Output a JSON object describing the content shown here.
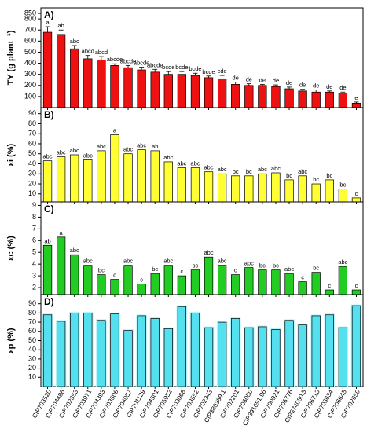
{
  "chart_data": [
    {
      "type": "bar",
      "title": "A)",
      "y_label": "TY (g plant⁻¹)",
      "color": "#ee1111",
      "categories": [
        "CIP703520",
        "CIP704486",
        "CIP702853",
        "CIP703971",
        "CIP704393",
        "CIP703506",
        "CIP704057",
        "CIP701129",
        "CIP704501",
        "CIP705952",
        "CIP703068",
        "CIP703552",
        "CIP702343",
        "CIP380389.1",
        "CIP702201",
        "CIP706050",
        "CIP391691.96",
        "CIP700921",
        "CIP706776",
        "CIP374080.5",
        "CIP706713",
        "CIP703634",
        "CIP706645",
        "CIP702650"
      ],
      "values": [
        680,
        660,
        530,
        440,
        430,
        380,
        360,
        340,
        320,
        300,
        300,
        290,
        270,
        260,
        210,
        200,
        200,
        190,
        170,
        150,
        140,
        140,
        130,
        40
      ],
      "errors": [
        50,
        40,
        30,
        30,
        30,
        15,
        20,
        25,
        25,
        25,
        25,
        20,
        15,
        30,
        20,
        15,
        10,
        15,
        15,
        15,
        20,
        10,
        10,
        10
      ],
      "annotations": [
        "a",
        "ab",
        "abc",
        "abcd",
        "abcd",
        "abcde",
        "abcde",
        "abcde",
        "abcde",
        "bcde",
        "bcde",
        "bcde",
        "bcde",
        "cde",
        "de",
        "de",
        "de",
        "de",
        "de",
        "de",
        "de",
        "de",
        "de",
        "e"
      ],
      "ylim": [
        0,
        900
      ],
      "yticks": [
        100,
        200,
        300,
        400,
        500,
        600,
        700,
        800,
        850
      ]
    },
    {
      "type": "bar",
      "title": "B)",
      "y_label": "εi (%)",
      "color": "#ffff33",
      "values": [
        43,
        47,
        49,
        44,
        53,
        69,
        50,
        54,
        53,
        42,
        36,
        36,
        32,
        30,
        28,
        28,
        30,
        31,
        24,
        28,
        20,
        24,
        15,
        6
      ],
      "annotations": [
        "abc",
        "abc",
        "abc",
        "abc",
        "abc",
        "a",
        "abc",
        "abc",
        "ab",
        "abc",
        "abc",
        "abc",
        "abc",
        "abc",
        "bc",
        "bc",
        "abc",
        "abc",
        "bc",
        "abc",
        "bc",
        "bc",
        "bc",
        "c"
      ],
      "ylim": [
        2,
        96
      ],
      "yticks": [
        10,
        20,
        30,
        40,
        50,
        60,
        70,
        80,
        90
      ]
    },
    {
      "type": "bar",
      "title": "C)",
      "y_label": "εc (%)",
      "color": "#22cc22",
      "values": [
        5.6,
        6.3,
        4.8,
        3.9,
        3.1,
        2.7,
        3.9,
        2.3,
        3.2,
        3.9,
        3.0,
        3.5,
        4.6,
        3.9,
        3.1,
        3.7,
        3.5,
        3.5,
        3.2,
        2.5,
        3.3,
        1.8,
        3.8,
        1.8
      ],
      "annotations": [
        "ab",
        "a",
        "abc",
        "abc",
        "bc",
        "c",
        "abc",
        "c",
        "bc",
        "abc",
        "c",
        "bc",
        "abc",
        "abc",
        "c",
        "abc",
        "bc",
        "bc",
        "abc",
        "c",
        "bc",
        "c",
        "abc",
        "c"
      ],
      "ylim": [
        1.4,
        9.3
      ],
      "yticks": [
        2,
        3,
        4,
        5,
        6,
        7,
        8,
        9
      ]
    },
    {
      "type": "bar",
      "title": "D)",
      "y_label": "εp (%)",
      "color": "#55e0f0",
      "values": [
        78,
        71,
        80,
        80,
        72,
        79,
        61,
        77,
        74,
        63,
        87,
        80,
        64,
        70,
        74,
        64,
        65,
        62,
        72,
        67,
        77,
        78,
        64,
        88
      ],
      "ylim": [
        0,
        100
      ],
      "yticks": [
        10,
        20,
        30,
        40,
        50,
        60,
        70,
        80,
        90
      ]
    }
  ]
}
